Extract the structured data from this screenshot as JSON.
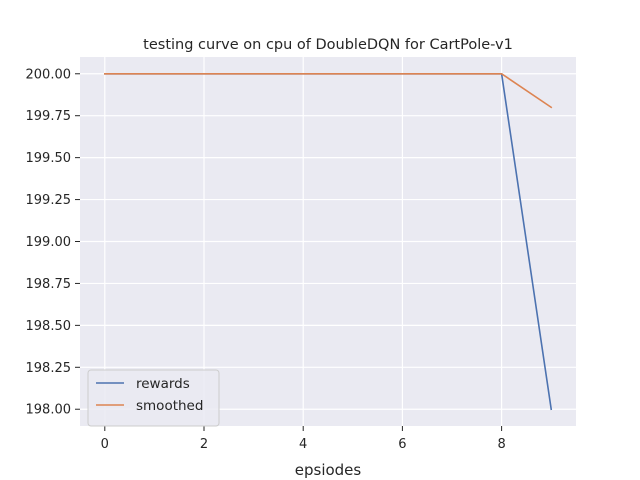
{
  "chart_data": {
    "type": "line",
    "title": "testing curve on cpu of DoubleDQN for CartPole-v1",
    "xlabel": "epsiodes",
    "ylabel": "",
    "x": [
      0,
      1,
      2,
      3,
      4,
      5,
      6,
      7,
      8,
      9
    ],
    "xlim": [
      -0.5,
      9.5
    ],
    "ylim": [
      197.9,
      200.1
    ],
    "xticks": [
      0,
      2,
      4,
      6,
      8
    ],
    "xtick_labels": [
      "0",
      "2",
      "4",
      "6",
      "8"
    ],
    "yticks": [
      198.0,
      198.25,
      198.5,
      198.75,
      199.0,
      199.25,
      199.5,
      199.75,
      200.0
    ],
    "ytick_labels": [
      "198.00",
      "198.25",
      "198.50",
      "198.75",
      "199.00",
      "199.25",
      "199.50",
      "199.75",
      "200.00"
    ],
    "grid": true,
    "legend_position": "lower-left",
    "series": [
      {
        "name": "rewards",
        "color": "#4c72b0",
        "values": [
          200,
          200,
          200,
          200,
          200,
          200,
          200,
          200,
          200,
          198
        ]
      },
      {
        "name": "smoothed",
        "color": "#dd8452",
        "values": [
          200,
          200,
          200,
          200,
          200,
          200,
          200,
          200,
          200,
          199.8
        ]
      }
    ],
    "background_color": "#eaeaf2"
  }
}
